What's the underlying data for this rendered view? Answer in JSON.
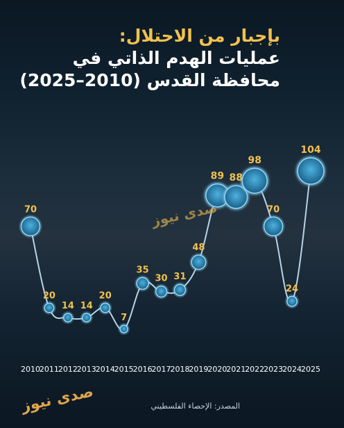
{
  "title": {
    "line1": "بإجبار من الاحتلال:",
    "line2": "عمليات الهدم الذاتي في",
    "line3": "محافظة القدس (2010–2025)"
  },
  "source": "المصدر: الإحصاء الفلسطيني",
  "logo_text": "صدى نيوز",
  "colors": {
    "accent": "#f2c14e",
    "line": "#b9d4e8",
    "marker_fill": "#2f8ec0",
    "marker_stroke": "#8fd6f5"
  },
  "chart_data": {
    "type": "line",
    "title": "",
    "xlabel": "",
    "ylabel": "",
    "x": [
      "2010",
      "2011",
      "2012",
      "2013",
      "2014",
      "2015",
      "2016",
      "2017",
      "2018",
      "2019",
      "2020",
      "2021",
      "2022",
      "2023",
      "2024",
      "2025"
    ],
    "series": [
      {
        "values": [
          70,
          20,
          14,
          14,
          20,
          7,
          35,
          30,
          31,
          48,
          89,
          88,
          98,
          70,
          24,
          104
        ]
      }
    ],
    "ylim": [
      0,
      110
    ],
    "grid": false,
    "legend": "none",
    "markers": "circles sized by value",
    "data_labels": true
  }
}
